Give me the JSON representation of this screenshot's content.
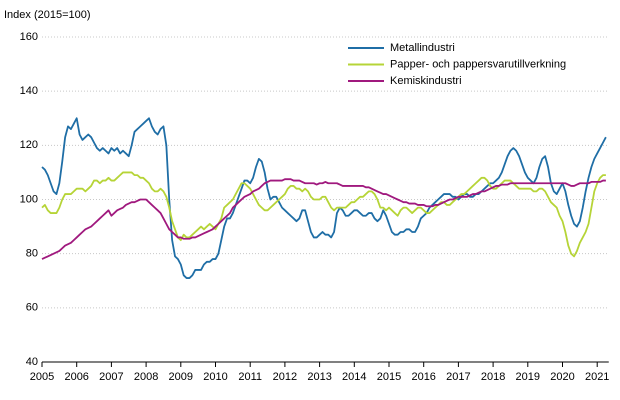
{
  "chart_data": {
    "type": "line",
    "y_axis_label": "Index (2015=100)",
    "categories": [
      "2005",
      null,
      null,
      null,
      null,
      null,
      null,
      null,
      null,
      null,
      null,
      null,
      "2006",
      null,
      null,
      null,
      null,
      null,
      null,
      null,
      null,
      null,
      null,
      null,
      "2007",
      null,
      null,
      null,
      null,
      null,
      null,
      null,
      null,
      null,
      null,
      null,
      "2008",
      null,
      null,
      null,
      null,
      null,
      null,
      null,
      null,
      null,
      null,
      null,
      "2009",
      null,
      null,
      null,
      null,
      null,
      null,
      null,
      null,
      null,
      null,
      null,
      "2010",
      null,
      null,
      null,
      null,
      null,
      null,
      null,
      null,
      null,
      null,
      null,
      "2011",
      null,
      null,
      null,
      null,
      null,
      null,
      null,
      null,
      null,
      null,
      null,
      "2012",
      null,
      null,
      null,
      null,
      null,
      null,
      null,
      null,
      null,
      null,
      null,
      "2013",
      null,
      null,
      null,
      null,
      null,
      null,
      null,
      null,
      null,
      null,
      null,
      "2014",
      null,
      null,
      null,
      null,
      null,
      null,
      null,
      null,
      null,
      null,
      null,
      "2015",
      null,
      null,
      null,
      null,
      null,
      null,
      null,
      null,
      null,
      null,
      null,
      "2016",
      null,
      null,
      null,
      null,
      null,
      null,
      null,
      null,
      null,
      null,
      null,
      "2017",
      null,
      null,
      null,
      null,
      null,
      null,
      null,
      null,
      null,
      null,
      null,
      "2018",
      null,
      null,
      null,
      null,
      null,
      null,
      null,
      null,
      null,
      null,
      null,
      "2019",
      null,
      null,
      null,
      null,
      null,
      null,
      null,
      null,
      null,
      null,
      null,
      "2020",
      null,
      null,
      null,
      null,
      null,
      null,
      null,
      null,
      null,
      null,
      null,
      "2021",
      null,
      null,
      null
    ],
    "series": [
      {
        "name": "Metallindustri",
        "color": "#1f6ea6",
        "values": [
          112,
          111,
          109,
          106,
          103,
          102,
          106,
          114,
          123,
          127,
          126,
          128,
          130,
          124,
          122,
          123,
          124,
          123,
          121,
          119,
          118,
          119,
          118,
          117,
          119,
          118,
          119,
          117,
          118,
          117,
          116,
          120,
          125,
          126,
          127,
          128,
          129,
          130,
          127,
          125,
          124,
          126,
          127,
          120,
          100,
          85,
          79,
          78,
          76,
          72,
          71,
          71,
          72,
          74,
          74,
          74,
          76,
          77,
          77,
          78,
          78,
          80,
          85,
          90,
          93,
          93,
          95,
          98,
          101,
          104,
          107,
          107,
          106,
          108,
          112,
          115,
          114,
          110,
          104,
          100,
          101,
          101,
          99,
          97,
          96,
          95,
          94,
          93,
          92,
          93,
          96,
          96,
          92,
          88,
          86,
          86,
          87,
          88,
          87,
          87,
          86,
          88,
          95,
          97,
          96,
          94,
          94,
          95,
          96,
          96,
          95,
          94,
          94,
          95,
          95,
          93,
          92,
          93,
          96,
          94,
          91,
          88,
          87,
          87,
          88,
          88,
          89,
          89,
          88,
          88,
          90,
          93,
          94,
          95,
          97,
          98,
          99,
          100,
          101,
          102,
          102,
          102,
          101,
          101,
          100,
          101,
          102,
          102,
          101,
          101,
          102,
          102,
          103,
          104,
          105,
          106,
          106,
          107,
          108,
          110,
          113,
          116,
          118,
          119,
          118,
          116,
          113,
          110,
          108,
          107,
          106,
          108,
          112,
          115,
          116,
          112,
          106,
          103,
          102,
          104,
          106,
          103,
          98,
          94,
          91,
          90,
          92,
          97,
          103,
          108,
          112,
          115,
          117,
          119,
          121,
          123
        ]
      },
      {
        "name": "Papper- och pappersvarutillverkning",
        "color": "#b6d437",
        "values": [
          97,
          98,
          96,
          95,
          95,
          95,
          97,
          100,
          102,
          102,
          102,
          103,
          104,
          104,
          104,
          103,
          104,
          105,
          107,
          107,
          106,
          107,
          107,
          108,
          107,
          107,
          108,
          109,
          110,
          110,
          110,
          110,
          109,
          109,
          108,
          108,
          107,
          106,
          104,
          103,
          103,
          104,
          103,
          101,
          97,
          92,
          89,
          86,
          85,
          87,
          86,
          86,
          87,
          88,
          89,
          90,
          89,
          90,
          91,
          90,
          89,
          91,
          93,
          97,
          98,
          99,
          100,
          102,
          104,
          106,
          106,
          105,
          104,
          102,
          100,
          98,
          97,
          96,
          96,
          97,
          98,
          99,
          100,
          101,
          102,
          104,
          105,
          105,
          104,
          104,
          103,
          104,
          103,
          101,
          100,
          100,
          100,
          101,
          101,
          99,
          97,
          96,
          97,
          97,
          97,
          97,
          98,
          99,
          99,
          100,
          101,
          101,
          102,
          103,
          103,
          102,
          100,
          97,
          97,
          96,
          97,
          96,
          95,
          94,
          96,
          97,
          97,
          96,
          95,
          96,
          97,
          97,
          96,
          95,
          95,
          96,
          97,
          98,
          99,
          99,
          98,
          98,
          99,
          100,
          101,
          102,
          102,
          103,
          104,
          105,
          106,
          107,
          108,
          108,
          107,
          105,
          104,
          104,
          105,
          106,
          107,
          107,
          107,
          106,
          105,
          104,
          104,
          104,
          104,
          104,
          103,
          103,
          104,
          104,
          103,
          101,
          99,
          98,
          97,
          94,
          92,
          88,
          83,
          80,
          79,
          81,
          84,
          86,
          88,
          91,
          97,
          103,
          106,
          108,
          109,
          109
        ]
      },
      {
        "name": "Kemiskindustri",
        "color": "#a0197e",
        "values": [
          78,
          78.5,
          79,
          79.5,
          80,
          80.5,
          81,
          82,
          83,
          83.5,
          84,
          85,
          86,
          87,
          88,
          89,
          89.5,
          90,
          91,
          92,
          93,
          94,
          95,
          96,
          94,
          95,
          96,
          96.5,
          97,
          98,
          98.5,
          99,
          99,
          99.5,
          100,
          100,
          100,
          99,
          98,
          97,
          96,
          95,
          93,
          91,
          89,
          88,
          87,
          86,
          86,
          85.5,
          85.5,
          85.5,
          86,
          86,
          86.5,
          87,
          87.5,
          88,
          88.5,
          89,
          90,
          91,
          92,
          93,
          94,
          95,
          97,
          98,
          99,
          100,
          101,
          101.5,
          102,
          103,
          103.5,
          104,
          105,
          106,
          106.5,
          107,
          107,
          107,
          107,
          107,
          107.5,
          107.5,
          107.5,
          107,
          107,
          107,
          106.5,
          106,
          106,
          106,
          106,
          105.5,
          106,
          106,
          106.5,
          106,
          106,
          106,
          106,
          105.5,
          105,
          105,
          105,
          105,
          105,
          105,
          105,
          105,
          104.5,
          104.5,
          104,
          103.5,
          103,
          102.5,
          102,
          102,
          101.5,
          101,
          100.5,
          100,
          99.5,
          99,
          99,
          98.5,
          98.5,
          98.5,
          98,
          98,
          98,
          97.5,
          97.5,
          97.5,
          98,
          98,
          98.5,
          99,
          99.5,
          100,
          100,
          100.5,
          101,
          101,
          101,
          101,
          101.5,
          102,
          102,
          102.5,
          103,
          103,
          103.5,
          104,
          104.5,
          105,
          105,
          105.5,
          105.5,
          105.5,
          106,
          106,
          106,
          106,
          106,
          106,
          106,
          106,
          106,
          106,
          106,
          106,
          106,
          106,
          106,
          106,
          106,
          106,
          106,
          106,
          105.5,
          105,
          105,
          105.5,
          106,
          106,
          106,
          106,
          106.5,
          106.5,
          106.5,
          106.5,
          107,
          107
        ]
      }
    ],
    "ylim": [
      40,
      160
    ],
    "yticks": [
      40,
      60,
      80,
      100,
      120,
      140,
      160
    ],
    "grid": true,
    "legend": "top-right"
  }
}
